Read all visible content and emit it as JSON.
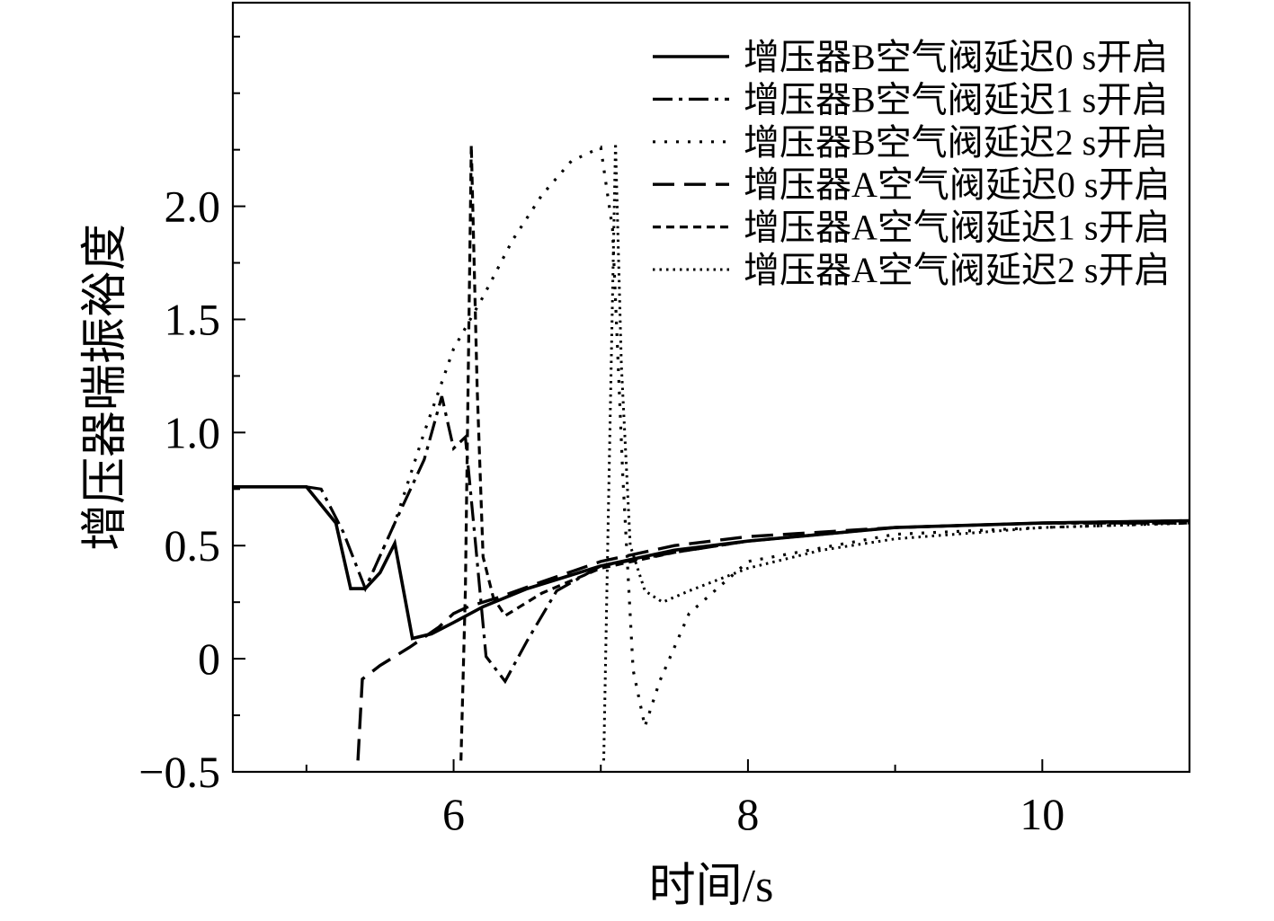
{
  "chart_data": {
    "type": "line",
    "title": "",
    "xlabel": "时间/s",
    "ylabel": "增压器喘振裕度",
    "xlim": [
      4.5,
      11.0
    ],
    "ylim": [
      -0.5,
      2.9
    ],
    "x_ticks": [
      6,
      8,
      10
    ],
    "x_tick_labels": [
      "6",
      "8",
      "10"
    ],
    "y_ticks": [
      -0.5,
      0,
      0.5,
      1.0,
      1.5,
      2.0
    ],
    "y_tick_labels": [
      "−0.5",
      "0",
      "0.5",
      "1.0",
      "1.5",
      "2.0"
    ],
    "grid": false,
    "legend_position": "top-right",
    "series": [
      {
        "name": "增压器B空气阀延迟0 s开启",
        "style": "solid",
        "x": [
          4.5,
          5.0,
          5.2,
          5.3,
          5.4,
          5.5,
          5.6,
          5.72,
          5.85,
          6.0,
          6.2,
          6.5,
          7.0,
          7.5,
          8.0,
          9.0,
          10.0,
          11.0
        ],
        "y": [
          0.76,
          0.76,
          0.6,
          0.31,
          0.31,
          0.38,
          0.51,
          0.09,
          0.11,
          0.16,
          0.23,
          0.31,
          0.41,
          0.48,
          0.52,
          0.58,
          0.6,
          0.61
        ]
      },
      {
        "name": "增压器B空气阀延迟1 s开启",
        "style": "dashdot",
        "x": [
          4.5,
          5.0,
          5.1,
          5.25,
          5.4,
          5.6,
          5.8,
          5.92,
          6.0,
          6.08,
          6.15,
          6.22,
          6.35,
          6.5,
          6.7,
          7.0,
          7.5,
          8.0,
          9.0,
          10.0,
          11.0
        ],
        "y": [
          0.76,
          0.76,
          0.75,
          0.56,
          0.31,
          0.6,
          0.88,
          1.16,
          0.93,
          0.98,
          0.5,
          0.01,
          -0.1,
          0.08,
          0.3,
          0.41,
          0.47,
          0.52,
          0.58,
          0.6,
          0.6
        ]
      },
      {
        "name": "增压器B空气阀延迟2 s开启",
        "style": "dotted",
        "x": [
          4.5,
          5.0,
          5.2,
          5.3,
          5.4,
          5.6,
          5.8,
          6.0,
          6.2,
          6.4,
          6.6,
          6.8,
          7.0,
          7.08,
          7.15,
          7.22,
          7.3,
          7.4,
          7.6,
          8.0,
          9.0,
          10.0,
          11.0
        ],
        "y": [
          0.76,
          0.76,
          0.6,
          0.31,
          0.31,
          0.6,
          1.0,
          1.37,
          1.6,
          1.85,
          2.05,
          2.2,
          2.26,
          1.9,
          0.8,
          -0.05,
          -0.3,
          -0.1,
          0.2,
          0.43,
          0.55,
          0.58,
          0.6
        ]
      },
      {
        "name": "增压器A空气阀延迟0 s开启",
        "style": "dashed",
        "x": [
          5.35,
          5.38,
          5.5,
          5.7,
          5.9,
          6.0,
          6.1,
          6.3,
          6.6,
          7.0,
          7.5,
          8.0,
          9.0,
          10.0,
          11.0
        ],
        "y": [
          -0.45,
          -0.09,
          -0.03,
          0.05,
          0.14,
          0.2,
          0.23,
          0.27,
          0.34,
          0.43,
          0.5,
          0.54,
          0.58,
          0.6,
          0.61
        ]
      },
      {
        "name": "增压器A空气阀延迟1 s开启",
        "style": "short-dashed",
        "x": [
          6.05,
          6.08,
          6.12,
          6.16,
          6.2,
          6.27,
          6.35,
          6.45,
          6.6,
          7.0,
          7.5,
          8.0,
          9.0,
          10.0,
          11.0
        ],
        "y": [
          -0.45,
          0.3,
          2.27,
          1.2,
          0.45,
          0.27,
          0.19,
          0.23,
          0.29,
          0.4,
          0.47,
          0.52,
          0.58,
          0.6,
          0.6
        ]
      },
      {
        "name": "增压器A空气阀延迟2 s开启",
        "style": "fine-dotted",
        "x": [
          7.02,
          7.05,
          7.1,
          7.14,
          7.2,
          7.3,
          7.42,
          7.6,
          8.0,
          8.5,
          9.0,
          10.0,
          11.0
        ],
        "y": [
          -0.45,
          0.6,
          2.28,
          1.3,
          0.5,
          0.3,
          0.25,
          0.3,
          0.4,
          0.48,
          0.53,
          0.58,
          0.6
        ]
      }
    ]
  }
}
